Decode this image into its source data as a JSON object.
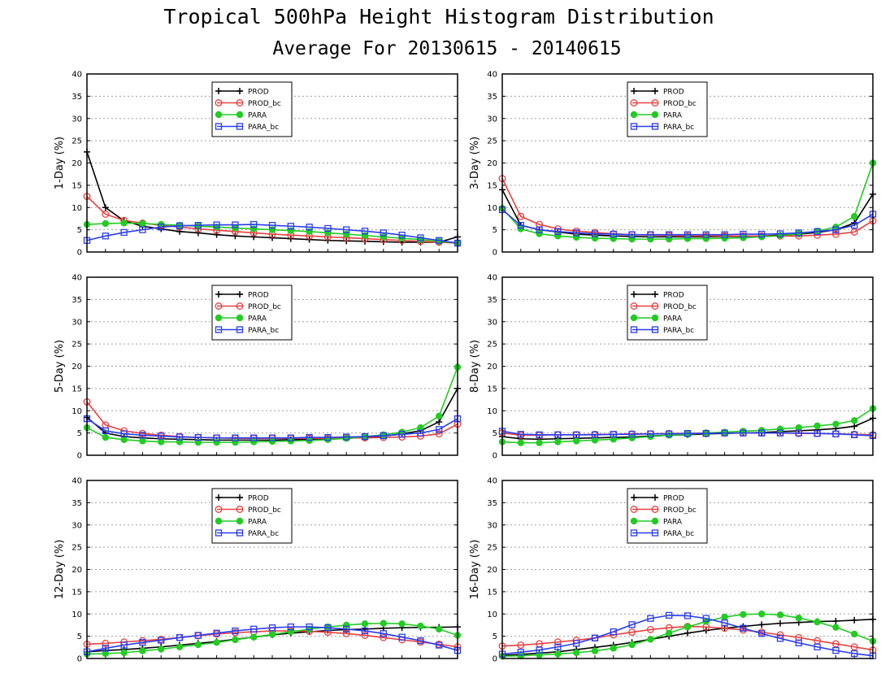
{
  "header": {
    "title": "Tropical 500hPa Height Histogram Distribution",
    "subtitle": "Average For 20130615 - 20140615"
  },
  "colors": {
    "PROD": "#000000",
    "PROD_bc": "#e84040",
    "PARA": "#22cc22",
    "PARA_bc": "#2a3cf0",
    "grid": "#a0a0a0"
  },
  "chart_data": [
    {
      "type": "line",
      "ylabel": "1-Day (%)",
      "ylim": [
        0,
        40
      ],
      "yticks": [
        0,
        5,
        10,
        15,
        20,
        25,
        30,
        35,
        40
      ],
      "grid": true,
      "legend_position": "top-center",
      "series": [
        {
          "name": "PROD",
          "marker": "cross",
          "values": [
            22.5,
            10.0,
            7.0,
            5.8,
            5.2,
            4.6,
            4.3,
            3.9,
            3.6,
            3.4,
            3.2,
            3.0,
            2.8,
            2.6,
            2.5,
            2.4,
            2.3,
            2.2,
            2.2,
            2.2,
            3.4
          ]
        },
        {
          "name": "PROD_bc",
          "marker": "circle",
          "values": [
            12.5,
            8.5,
            7.1,
            6.5,
            6.0,
            5.6,
            5.2,
            4.9,
            4.6,
            4.3,
            4.0,
            3.8,
            3.6,
            3.4,
            3.2,
            3.0,
            2.8,
            2.6,
            2.4,
            2.2,
            2.0
          ]
        },
        {
          "name": "PARA",
          "marker": "dot",
          "values": [
            6.2,
            6.4,
            6.5,
            6.4,
            6.2,
            6.0,
            5.8,
            5.6,
            5.4,
            5.2,
            5.0,
            4.8,
            4.6,
            4.3,
            4.0,
            3.7,
            3.4,
            3.1,
            2.8,
            2.4,
            2.0
          ]
        },
        {
          "name": "PARA_bc",
          "marker": "square",
          "values": [
            2.6,
            3.6,
            4.4,
            5.0,
            5.6,
            5.9,
            6.0,
            6.1,
            6.1,
            6.2,
            6.0,
            5.8,
            5.6,
            5.3,
            5.0,
            4.7,
            4.3,
            3.8,
            3.2,
            2.6,
            2.0
          ]
        }
      ]
    },
    {
      "type": "line",
      "ylabel": "3-Day (%)",
      "ylim": [
        0,
        40
      ],
      "yticks": [
        0,
        5,
        10,
        15,
        20,
        25,
        30,
        35,
        40
      ],
      "grid": true,
      "legend_position": "top-center",
      "series": [
        {
          "name": "PROD",
          "marker": "cross",
          "values": [
            14.0,
            6.0,
            5.0,
            4.5,
            4.0,
            3.8,
            3.6,
            3.5,
            3.4,
            3.4,
            3.4,
            3.4,
            3.5,
            3.5,
            3.6,
            3.8,
            4.0,
            4.4,
            5.0,
            6.5,
            13.0
          ]
        },
        {
          "name": "PROD_bc",
          "marker": "circle",
          "values": [
            16.5,
            8.0,
            6.2,
            5.2,
            4.7,
            4.4,
            4.1,
            3.9,
            3.8,
            3.7,
            3.6,
            3.6,
            3.6,
            3.6,
            3.6,
            3.6,
            3.6,
            3.8,
            4.0,
            4.5,
            7.0
          ]
        },
        {
          "name": "PARA",
          "marker": "dot",
          "values": [
            9.8,
            5.2,
            4.1,
            3.6,
            3.3,
            3.1,
            3.0,
            2.9,
            2.9,
            2.9,
            3.0,
            3.0,
            3.1,
            3.2,
            3.4,
            3.7,
            4.1,
            4.7,
            5.6,
            8.0,
            20.0
          ]
        },
        {
          "name": "PARA_bc",
          "marker": "square",
          "values": [
            9.5,
            6.0,
            5.0,
            4.6,
            4.3,
            4.1,
            4.0,
            3.9,
            3.9,
            3.9,
            3.9,
            3.9,
            3.9,
            4.0,
            4.0,
            4.1,
            4.3,
            4.6,
            5.0,
            6.0,
            8.5
          ]
        }
      ]
    },
    {
      "type": "line",
      "ylabel": "5-Day (%)",
      "ylim": [
        0,
        40
      ],
      "yticks": [
        0,
        5,
        10,
        15,
        20,
        25,
        30,
        35,
        40
      ],
      "grid": true,
      "legend_position": "top-center",
      "series": [
        {
          "name": "PROD",
          "marker": "cross",
          "values": [
            8.5,
            5.0,
            4.2,
            3.9,
            3.7,
            3.6,
            3.5,
            3.4,
            3.4,
            3.4,
            3.4,
            3.5,
            3.6,
            3.7,
            3.8,
            4.0,
            4.3,
            4.8,
            5.5,
            7.5,
            15.0
          ]
        },
        {
          "name": "PROD_bc",
          "marker": "circle",
          "values": [
            12.0,
            6.8,
            5.5,
            4.9,
            4.5,
            4.2,
            4.0,
            3.9,
            3.8,
            3.8,
            3.8,
            3.8,
            3.8,
            3.8,
            3.9,
            3.9,
            4.0,
            4.1,
            4.3,
            4.8,
            7.0
          ]
        },
        {
          "name": "PARA",
          "marker": "dot",
          "values": [
            6.2,
            4.0,
            3.5,
            3.2,
            3.0,
            3.0,
            2.9,
            2.9,
            2.9,
            3.0,
            3.1,
            3.2,
            3.3,
            3.5,
            3.8,
            4.2,
            4.6,
            5.2,
            6.2,
            8.8,
            19.8
          ]
        },
        {
          "name": "PARA_bc",
          "marker": "square",
          "values": [
            8.2,
            5.5,
            4.8,
            4.5,
            4.3,
            4.1,
            4.0,
            3.9,
            3.9,
            3.9,
            3.9,
            3.9,
            4.0,
            4.0,
            4.1,
            4.2,
            4.4,
            4.7,
            5.0,
            5.8,
            8.2
          ]
        }
      ]
    },
    {
      "type": "line",
      "ylabel": "8-Day (%)",
      "ylim": [
        0,
        40
      ],
      "yticks": [
        0,
        5,
        10,
        15,
        20,
        25,
        30,
        35,
        40
      ],
      "grid": true,
      "legend_position": "top-center",
      "series": [
        {
          "name": "PROD",
          "marker": "cross",
          "values": [
            4.2,
            3.7,
            3.6,
            3.7,
            3.8,
            3.9,
            4.0,
            4.1,
            4.3,
            4.5,
            4.6,
            4.8,
            4.9,
            5.0,
            5.1,
            5.3,
            5.5,
            5.7,
            6.0,
            6.5,
            8.3
          ]
        },
        {
          "name": "PROD_bc",
          "marker": "circle",
          "values": [
            5.0,
            4.5,
            4.5,
            4.6,
            4.6,
            4.7,
            4.7,
            4.8,
            4.8,
            4.9,
            4.9,
            5.0,
            5.0,
            5.0,
            5.0,
            5.0,
            4.9,
            4.9,
            4.8,
            4.7,
            4.6
          ]
        },
        {
          "name": "PARA",
          "marker": "dot",
          "values": [
            3.0,
            2.8,
            2.8,
            3.0,
            3.2,
            3.4,
            3.6,
            3.9,
            4.2,
            4.5,
            4.7,
            5.0,
            5.2,
            5.4,
            5.6,
            5.9,
            6.2,
            6.6,
            7.0,
            7.8,
            10.5
          ]
        },
        {
          "name": "PARA_bc",
          "marker": "square",
          "values": [
            5.4,
            4.7,
            4.6,
            4.6,
            4.6,
            4.6,
            4.7,
            4.7,
            4.8,
            4.8,
            4.9,
            4.9,
            5.0,
            5.0,
            5.0,
            5.0,
            5.0,
            4.9,
            4.8,
            4.6,
            4.4
          ]
        }
      ]
    },
    {
      "type": "line",
      "ylabel": "12-Day (%)",
      "ylim": [
        0,
        40
      ],
      "yticks": [
        0,
        5,
        10,
        15,
        20,
        25,
        30,
        35,
        40
      ],
      "grid": true,
      "legend_position": "top-center",
      "series": [
        {
          "name": "PROD",
          "marker": "cross",
          "values": [
            1.5,
            1.8,
            2.0,
            2.3,
            2.6,
            3.0,
            3.4,
            3.8,
            4.3,
            4.8,
            5.3,
            5.7,
            6.0,
            6.3,
            6.5,
            6.6,
            6.8,
            6.9,
            7.0,
            7.0,
            7.1
          ]
        },
        {
          "name": "PROD_bc",
          "marker": "circle",
          "values": [
            3.2,
            3.4,
            3.7,
            4.0,
            4.3,
            4.7,
            5.1,
            5.5,
            5.8,
            6.0,
            6.2,
            6.2,
            6.1,
            5.9,
            5.6,
            5.2,
            4.7,
            4.2,
            3.7,
            3.2,
            2.6
          ]
        },
        {
          "name": "PARA",
          "marker": "dot",
          "values": [
            1.0,
            1.1,
            1.3,
            1.7,
            2.1,
            2.6,
            3.1,
            3.6,
            4.2,
            4.8,
            5.4,
            6.0,
            6.6,
            7.1,
            7.5,
            7.8,
            7.9,
            7.8,
            7.3,
            6.6,
            5.2
          ]
        },
        {
          "name": "PARA_bc",
          "marker": "square",
          "values": [
            1.5,
            2.3,
            3.0,
            3.6,
            4.1,
            4.7,
            5.2,
            5.7,
            6.2,
            6.6,
            6.9,
            7.1,
            7.1,
            6.9,
            6.6,
            6.2,
            5.6,
            4.8,
            4.0,
            3.0,
            1.8
          ]
        }
      ]
    },
    {
      "type": "line",
      "ylabel": "16-Day (%)",
      "ylim": [
        0,
        40
      ],
      "yticks": [
        0,
        5,
        10,
        15,
        20,
        25,
        30,
        35,
        40
      ],
      "grid": true,
      "legend_position": "top-center",
      "series": [
        {
          "name": "PROD",
          "marker": "cross",
          "values": [
            0.7,
            0.9,
            1.2,
            1.5,
            2.0,
            2.5,
            3.0,
            3.6,
            4.3,
            5.0,
            5.7,
            6.3,
            6.8,
            7.2,
            7.6,
            7.9,
            8.1,
            8.3,
            8.4,
            8.6,
            8.8
          ]
        },
        {
          "name": "PROD_bc",
          "marker": "circle",
          "values": [
            2.8,
            3.0,
            3.3,
            3.7,
            4.1,
            4.6,
            5.3,
            5.9,
            6.5,
            6.9,
            7.2,
            7.1,
            6.8,
            6.4,
            5.9,
            5.3,
            4.7,
            4.0,
            3.3,
            2.6,
            1.9
          ]
        },
        {
          "name": "PARA",
          "marker": "dot",
          "values": [
            0.5,
            0.6,
            0.8,
            1.0,
            1.3,
            1.7,
            2.3,
            3.1,
            4.3,
            5.7,
            7.1,
            8.3,
            9.3,
            9.9,
            10.0,
            9.8,
            9.1,
            8.2,
            7.0,
            5.5,
            3.9
          ]
        },
        {
          "name": "PARA_bc",
          "marker": "square",
          "values": [
            1.0,
            1.4,
            1.9,
            2.6,
            3.4,
            4.6,
            6.0,
            7.6,
            9.0,
            9.7,
            9.6,
            9.0,
            8.0,
            6.8,
            5.6,
            4.5,
            3.5,
            2.6,
            1.8,
            1.1,
            0.6
          ]
        }
      ]
    }
  ]
}
